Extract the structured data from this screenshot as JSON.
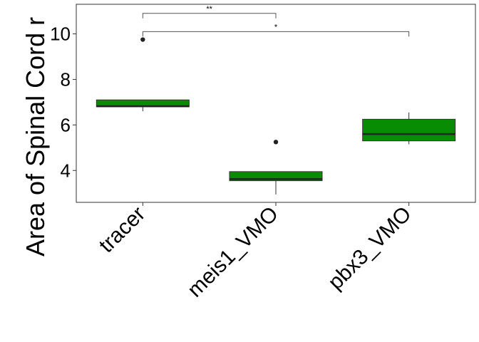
{
  "chart_data": {
    "type": "boxplot",
    "title": "",
    "xlabel": "",
    "ylabel": "Area of Spinal Cord r",
    "categories": [
      "tracer",
      "meis1_VMO",
      "pbx3_VMO"
    ],
    "ylim": [
      2.6,
      11.3
    ],
    "yticks": [
      4,
      6,
      8,
      10
    ],
    "box_color": "#078C03",
    "boxes": [
      {
        "category": "tracer",
        "whisker_low": 6.6,
        "q1": 6.8,
        "median": 6.82,
        "q3": 7.1,
        "whisker_high": 7.1,
        "outliers": [
          9.75
        ]
      },
      {
        "category": "meis1_VMO",
        "whisker_low": 2.95,
        "q1": 3.55,
        "median": 3.62,
        "q3": 3.95,
        "whisker_high": 3.95,
        "outliers": [
          5.25
        ]
      },
      {
        "category": "pbx3_VMO",
        "whisker_low": 5.15,
        "q1": 5.3,
        "median": 5.6,
        "q3": 6.25,
        "whisker_high": 6.55,
        "outliers": []
      }
    ],
    "significance": [
      {
        "from": "tracer",
        "to": "meis1_VMO",
        "y": 10.9,
        "label": "**"
      },
      {
        "from": "tracer",
        "to": "pbx3_VMO",
        "y": 10.1,
        "label": "*"
      }
    ],
    "grid": false,
    "legend": "none"
  }
}
